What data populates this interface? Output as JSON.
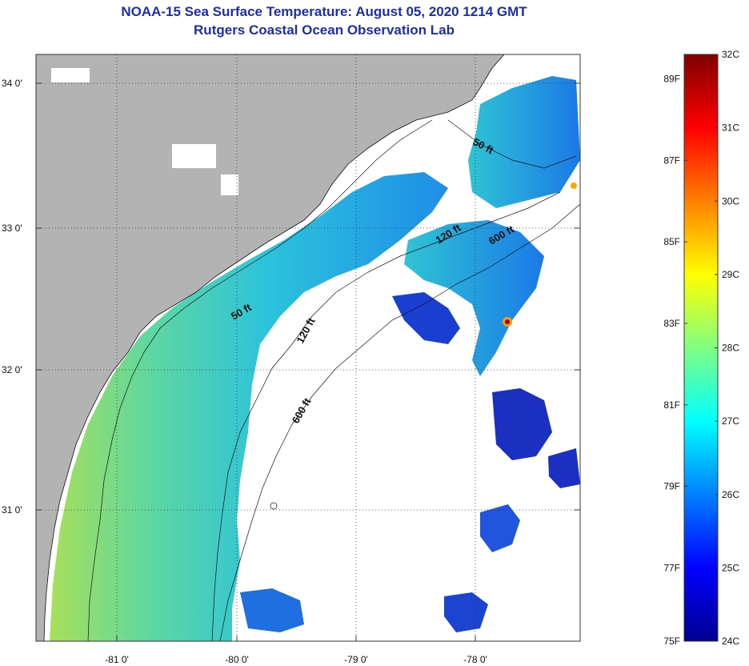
{
  "header": {
    "title": "NOAA-15 Sea Surface Temperature:  August 05, 2020 1214 GMT",
    "subtitle": "Rutgers Coastal Ocean Observation Lab"
  },
  "map": {
    "lat_ticks": [
      "34 0'",
      "33 0'",
      "32 0'",
      "31 0'"
    ],
    "lon_ticks": [
      "-81 0'",
      "-80 0'",
      "-79 0'",
      "-78 0'"
    ],
    "isobaths": [
      "50 ft",
      "120 ft",
      "600 ft"
    ],
    "isobath_labels": [
      {
        "text": "50 ft",
        "rot": 28
      },
      {
        "text": "120 ft",
        "rot": -32
      },
      {
        "text": "600 ft",
        "rot": -30
      },
      {
        "text": "50 ft",
        "rot": -30
      },
      {
        "text": "120 ft",
        "rot": -62
      },
      {
        "text": "600 ft",
        "rot": -60
      }
    ],
    "colors": {
      "land": "#b3b3b3",
      "cloud": "#ffffff",
      "coast": "#111111"
    }
  },
  "colorbar": {
    "fahrenheit_labels": [
      "89F",
      "87F",
      "85F",
      "83F",
      "81F",
      "79F",
      "77F",
      "75F"
    ],
    "celsius_labels": [
      "32C",
      "31C",
      "30C",
      "29C",
      "28C",
      "27C",
      "26C",
      "25C",
      "24C"
    ],
    "min_c": 24,
    "max_c": 32,
    "colors": [
      "#00008f",
      "#0000ff",
      "#0080ff",
      "#00ffff",
      "#80ff80",
      "#ffff00",
      "#ff8000",
      "#ff0000",
      "#800000"
    ]
  }
}
